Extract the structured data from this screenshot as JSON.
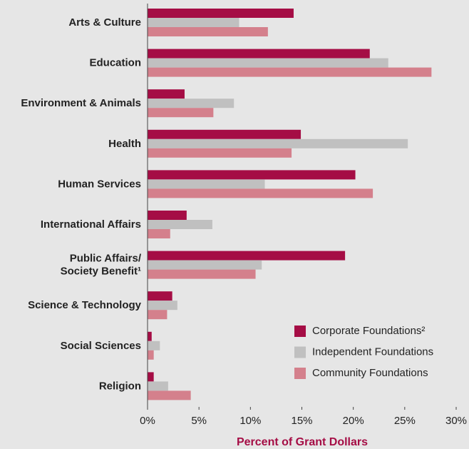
{
  "chart_data": {
    "type": "hbar",
    "xlabel": "Percent of Grant Dollars",
    "categories": [
      "Arts & Culture",
      "Education",
      "Environment & Animals",
      "Health",
      "Human Services",
      "International Affairs",
      "Public Affairs/\nSociety Benefit¹",
      "Science & Technology",
      "Social Sciences",
      "Religion"
    ],
    "series": [
      {
        "name": "Corporate Foundations²",
        "color": "#a50d45",
        "values": [
          14.2,
          21.6,
          3.6,
          14.9,
          20.2,
          3.8,
          19.2,
          2.4,
          0.4,
          0.6
        ]
      },
      {
        "name": "Independent Foundations",
        "color": "#c0c0c0",
        "values": [
          8.9,
          23.4,
          8.4,
          25.3,
          11.4,
          6.3,
          11.1,
          2.9,
          1.2,
          2.0
        ]
      },
      {
        "name": "Community Foundations",
        "color": "#d4808c",
        "values": [
          11.7,
          27.6,
          6.4,
          14.0,
          21.9,
          2.2,
          10.5,
          1.9,
          0.6,
          4.2
        ]
      }
    ],
    "xlim": [
      0,
      30
    ],
    "xticks": [
      {
        "value": 0,
        "label": "0%"
      },
      {
        "value": 5,
        "label": "5%"
      },
      {
        "value": 10,
        "label": "10%"
      },
      {
        "value": 15,
        "label": "15%"
      },
      {
        "value": 20,
        "label": "20%"
      },
      {
        "value": 25,
        "label": "25%"
      },
      {
        "value": 30,
        "label": "30%"
      }
    ],
    "legend": "lower right"
  }
}
